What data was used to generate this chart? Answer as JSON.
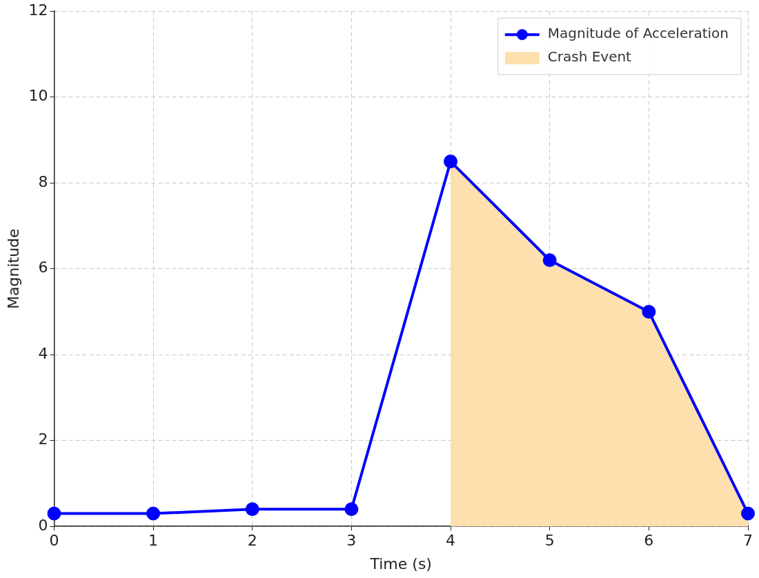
{
  "chart_data": {
    "type": "line",
    "xlabel": "Time (s)",
    "ylabel": "Magnitude",
    "x": [
      0,
      1,
      2,
      3,
      4,
      5,
      6,
      7
    ],
    "series": [
      {
        "name": "Magnitude of Acceleration",
        "color": "#0000ff",
        "marker": "circle",
        "values": [
          0.3,
          0.3,
          0.4,
          0.4,
          8.5,
          6.2,
          5.0,
          0.3
        ]
      },
      {
        "name": "Crash Event",
        "type": "area",
        "color": "#fde0ae",
        "marker": "none",
        "x": [
          4,
          5,
          6,
          7
        ],
        "values": [
          8.5,
          6.2,
          5.0,
          0.3
        ]
      }
    ],
    "xlim": [
      0,
      7
    ],
    "xticks": [
      0,
      1,
      2,
      3,
      4,
      5,
      6,
      7
    ],
    "ylim": [
      0,
      12
    ],
    "yticks": [
      0,
      2,
      4,
      6,
      8,
      10,
      12
    ],
    "grid": true,
    "legend": "top right",
    "line_style": "solid"
  }
}
